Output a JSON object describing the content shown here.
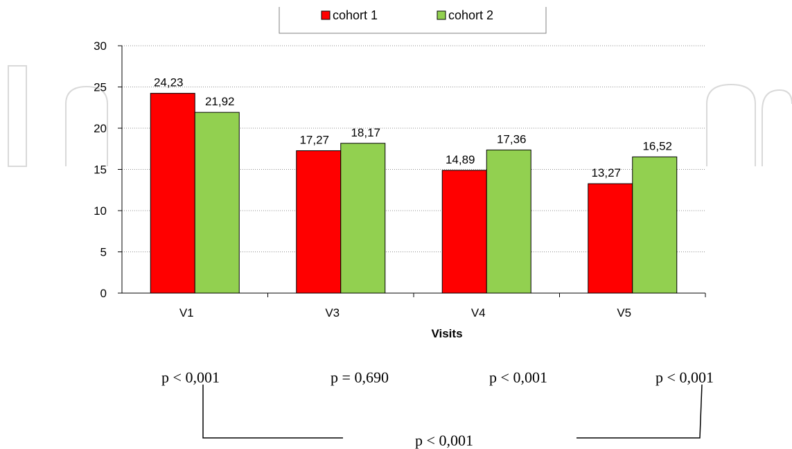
{
  "chart_data": {
    "type": "bar",
    "categories": [
      "V1",
      "V3",
      "V4",
      "V5"
    ],
    "series": [
      {
        "name": "cohort 1",
        "values": [
          24.23,
          17.27,
          14.89,
          13.27
        ],
        "labels": [
          "24,23",
          "17,27",
          "14,89",
          "13,27"
        ],
        "color": "#ff0000"
      },
      {
        "name": "cohort 2",
        "values": [
          21.92,
          18.17,
          17.36,
          16.52
        ],
        "labels": [
          "21,92",
          "18,17",
          "17,36",
          "16,52"
        ],
        "color": "#92d050"
      }
    ],
    "title": "",
    "xlabel": "Visits",
    "ylabel": "",
    "ylim": [
      0,
      30
    ],
    "yticks": [
      0,
      5,
      10,
      15,
      20,
      25,
      30
    ],
    "grid": "horizontal dotted",
    "legend_position": "top"
  },
  "pvalues": {
    "per_visit": [
      "p < 0,001",
      "p = 0,690",
      "p < 0,001",
      "p < 0,001"
    ],
    "overall": "p < 0,001"
  }
}
